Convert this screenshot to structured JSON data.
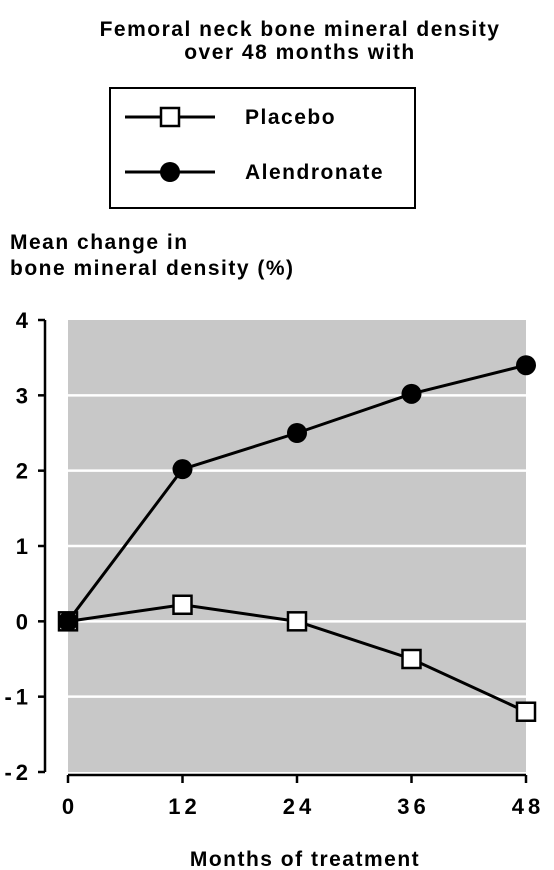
{
  "chart_data": {
    "type": "line",
    "title": [
      "Femoral neck bone mineral density",
      "over 48 months with"
    ],
    "y_label": [
      "Mean change in",
      "bone mineral density (%)"
    ],
    "x_label": "Months of treatment",
    "x": [
      0,
      12,
      24,
      36,
      48
    ],
    "series": [
      {
        "name": "Placebo",
        "color": "#000000",
        "marker": "square",
        "values": [
          0,
          0.22,
          0,
          -0.5,
          -1.2
        ]
      },
      {
        "name": "Alendronate",
        "color": "#000000",
        "marker": "circle",
        "values": [
          0,
          2.02,
          2.5,
          3.02,
          3.4
        ]
      }
    ],
    "xlim": [
      0,
      48
    ],
    "xticks": [
      0,
      12,
      24,
      36,
      48
    ],
    "ylim": [
      -2,
      4
    ],
    "yticks": [
      -2,
      -1,
      0,
      1,
      2,
      3,
      4
    ],
    "grid": true,
    "plot_background": "#c8c8c8"
  }
}
